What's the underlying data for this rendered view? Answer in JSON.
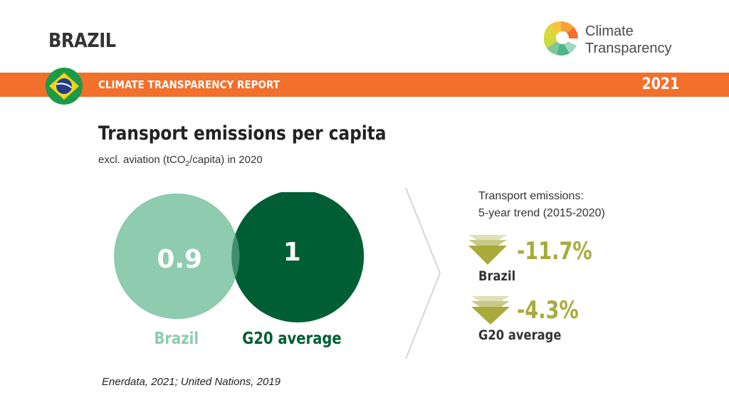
{
  "header": {
    "country": "BRAZIL",
    "report_title": "CLIMATE TRANSPARENCY REPORT",
    "year": "2021",
    "logo_text": "Climate\nTransparency"
  },
  "colors": {
    "orange": "#f26f2c",
    "brazil": "#8ecbb0",
    "g20": "#005e35",
    "trend": "#a8ab3b"
  },
  "chart_data": {
    "type": "venn",
    "title": "Transport emissions per capita",
    "subtitle_parts": [
      "excl. aviation (tCO",
      "2",
      "/capita) in 2020"
    ],
    "series": [
      {
        "name": "Brazil",
        "value": 0.9,
        "display": "0.9",
        "color": "#8ecbb0"
      },
      {
        "name": "G20 average",
        "value": 1,
        "display": "1",
        "color": "#005e35"
      }
    ]
  },
  "trend": {
    "heading": "Transport emissions:\n5-year trend (2015-2020)",
    "items": [
      {
        "name": "Brazil",
        "value": -11.7,
        "display": "-11.7%"
      },
      {
        "name": "G20 average",
        "value": -4.3,
        "display": "-4.3%"
      }
    ]
  },
  "source": "Enerdata, 2021; United Nations, 2019"
}
